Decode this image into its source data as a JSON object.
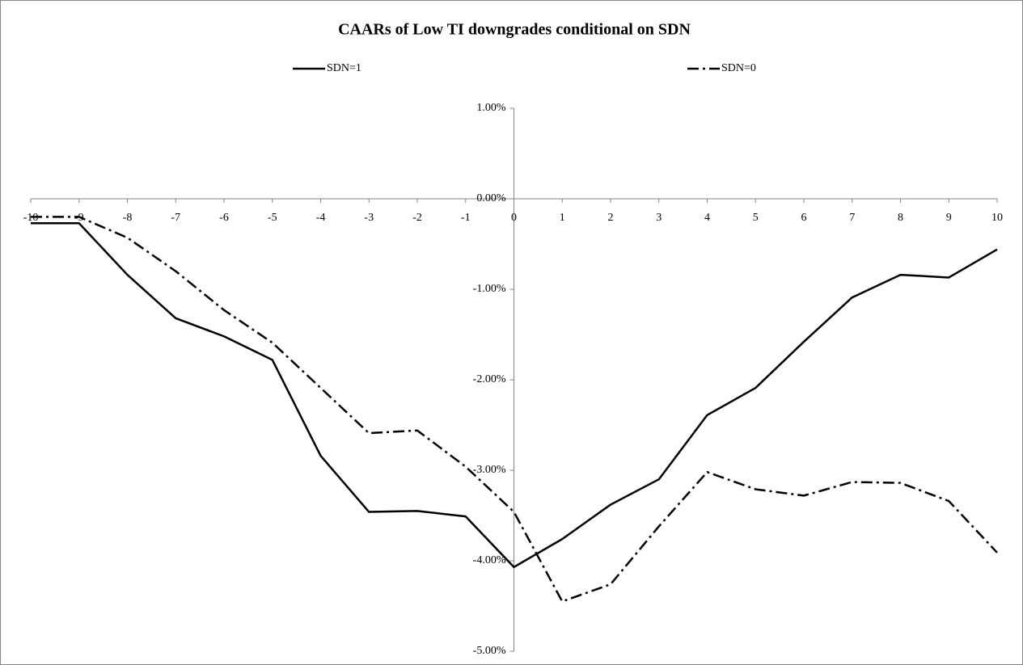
{
  "chart_data": {
    "type": "line",
    "title": "CAARs of Low TI downgrades conditional on SDN",
    "x": [
      -10,
      -9,
      -8,
      -7,
      -6,
      -5,
      -4,
      -3,
      -2,
      -1,
      0,
      1,
      2,
      3,
      4,
      5,
      6,
      7,
      8,
      9,
      10
    ],
    "series": [
      {
        "name": "SDN=1",
        "color": "#000000",
        "style": "solid",
        "values": [
          -0.27,
          -0.27,
          -0.84,
          -1.32,
          -1.52,
          -1.78,
          -2.84,
          -3.46,
          -3.45,
          -3.51,
          -4.07,
          -3.76,
          -3.38,
          -3.1,
          -2.39,
          -2.09,
          -1.58,
          -1.09,
          -0.84,
          -0.87,
          -0.56
        ]
      },
      {
        "name": "SDN=0",
        "color": "#000000",
        "style": "dashdot",
        "values": [
          -0.2,
          -0.2,
          -0.43,
          -0.8,
          -1.23,
          -1.59,
          -2.09,
          -2.59,
          -2.56,
          -2.96,
          -3.46,
          -4.45,
          -4.26,
          -3.62,
          -3.02,
          -3.21,
          -3.28,
          -3.13,
          -3.14,
          -3.34,
          -3.91
        ]
      }
    ],
    "xlim": [
      -10,
      10
    ],
    "xticks": [
      -10,
      -9,
      -8,
      -7,
      -6,
      -5,
      -4,
      -3,
      -2,
      -1,
      0,
      1,
      2,
      3,
      4,
      5,
      6,
      7,
      8,
      9,
      10
    ],
    "ylim": [
      -5,
      1
    ],
    "yticks": [
      {
        "value": 1,
        "label": "1.00%"
      },
      {
        "value": 0,
        "label": "0.00%"
      },
      {
        "value": -1,
        "label": "-1.00%"
      },
      {
        "value": -2,
        "label": "-2.00%"
      },
      {
        "value": -3,
        "label": "-3.00%"
      },
      {
        "value": -4,
        "label": "-4.00%"
      },
      {
        "value": -5,
        "label": "-5.00%"
      }
    ],
    "legend": "top",
    "grid": false
  }
}
